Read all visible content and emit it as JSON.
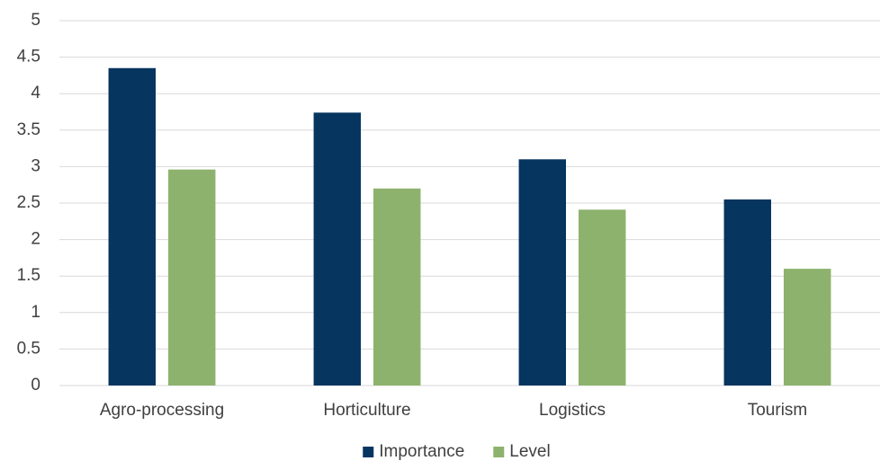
{
  "chart_data": {
    "type": "bar",
    "categories": [
      "Agro-processing",
      "Horticulture",
      "Logistics",
      "Tourism"
    ],
    "series": [
      {
        "name": "Importance",
        "color": "#06355f",
        "values": [
          4.35,
          3.74,
          3.1,
          2.55
        ]
      },
      {
        "name": "Level",
        "color": "#8db26d",
        "values": [
          2.96,
          2.7,
          2.41,
          1.6
        ]
      }
    ],
    "ylim": [
      0,
      5
    ],
    "yticks": [
      0,
      0.5,
      1,
      1.5,
      2,
      2.5,
      3,
      3.5,
      4,
      4.5,
      5
    ],
    "grid": true,
    "legend": "bottom"
  }
}
